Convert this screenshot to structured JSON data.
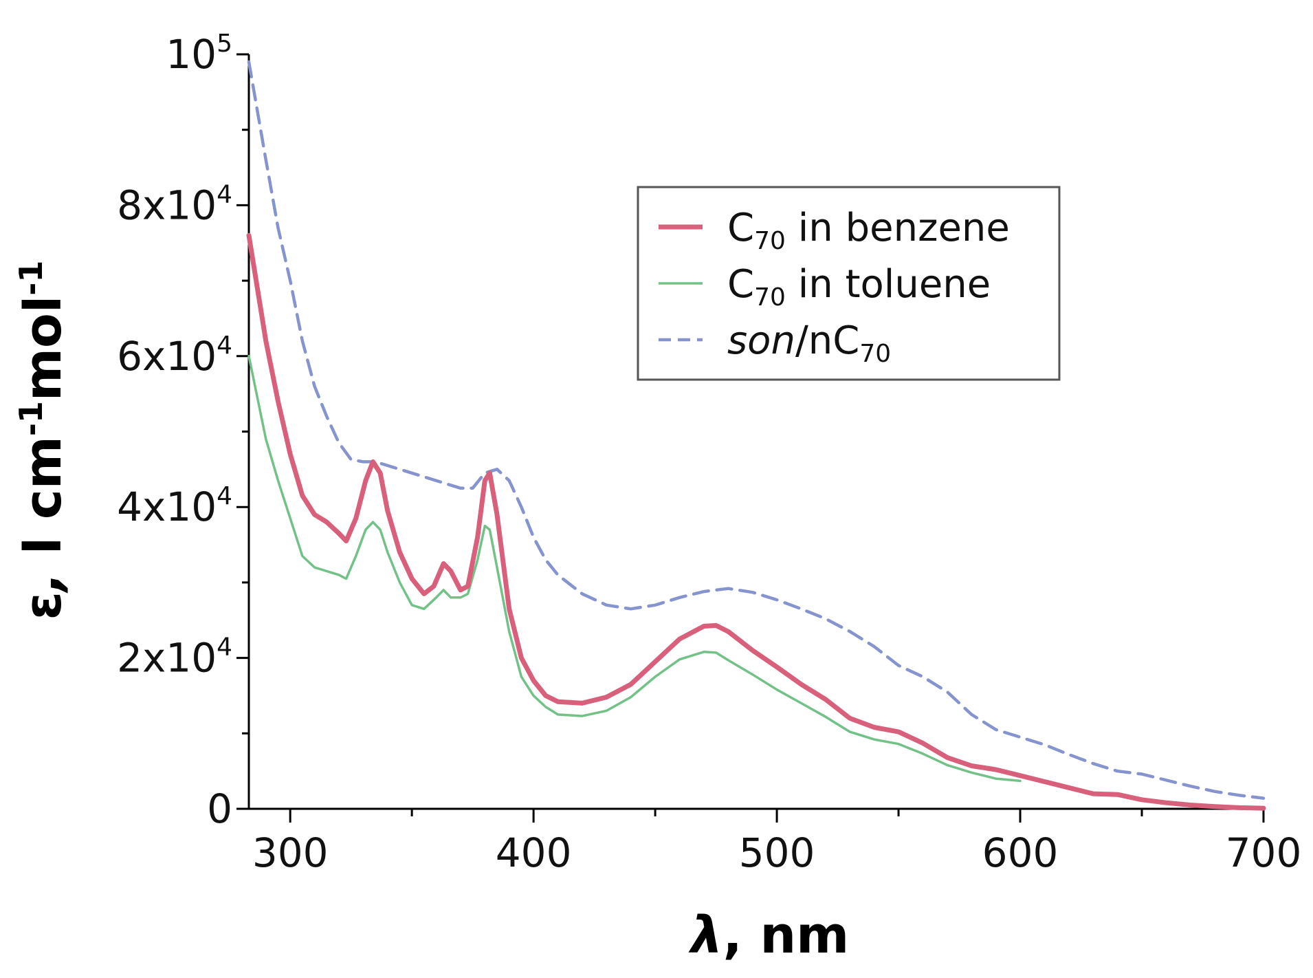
{
  "chart_data": {
    "type": "line",
    "xlabel": {
      "symbol": "λ",
      "unit": ", nm"
    },
    "ylabel": {
      "symbol": "ε",
      "sep": ", ",
      "l": "l cm",
      "e1": "-1",
      "mol": "mol",
      "e2": "-1"
    },
    "xlim": [
      283,
      700
    ],
    "ylim": [
      0,
      100000
    ],
    "grid": false,
    "legend_position": "top-right",
    "x_ticks": [
      {
        "value": 300,
        "label": "300"
      },
      {
        "value": 400,
        "label": "400"
      },
      {
        "value": 500,
        "label": "500"
      },
      {
        "value": 600,
        "label": "600"
      },
      {
        "value": 700,
        "label": "700"
      }
    ],
    "x_minor_ticks": [
      350,
      450,
      550,
      650
    ],
    "y_ticks": [
      {
        "value": 0,
        "base": "0",
        "exp": ""
      },
      {
        "value": 20000,
        "base": "2x10",
        "exp": "4"
      },
      {
        "value": 40000,
        "base": "4x10",
        "exp": "4"
      },
      {
        "value": 60000,
        "base": "6x10",
        "exp": "4"
      },
      {
        "value": 80000,
        "base": "8x10",
        "exp": "4"
      },
      {
        "value": 100000,
        "base": "10",
        "exp": "5"
      }
    ],
    "y_minor_ticks": [
      10000,
      30000,
      50000,
      70000,
      90000
    ],
    "series": [
      {
        "name": {
          "main": "C",
          "sub": "70",
          "rest": " in benzene"
        },
        "color": "#d9607a",
        "style": "solid",
        "width": "thick",
        "points": [
          [
            283,
            76000
          ],
          [
            290,
            62000
          ],
          [
            295,
            54000
          ],
          [
            300,
            47000
          ],
          [
            305,
            41500
          ],
          [
            310,
            39000
          ],
          [
            315,
            38000
          ],
          [
            320,
            36500
          ],
          [
            323,
            35500
          ],
          [
            327,
            38500
          ],
          [
            331,
            43500
          ],
          [
            334,
            46000
          ],
          [
            337,
            44500
          ],
          [
            340,
            39500
          ],
          [
            345,
            34000
          ],
          [
            350,
            30500
          ],
          [
            355,
            28500
          ],
          [
            359,
            29500
          ],
          [
            363,
            32500
          ],
          [
            366,
            31500
          ],
          [
            370,
            29000
          ],
          [
            373,
            29500
          ],
          [
            377,
            36000
          ],
          [
            380,
            43500
          ],
          [
            382,
            44500
          ],
          [
            385,
            39000
          ],
          [
            390,
            26500
          ],
          [
            395,
            20000
          ],
          [
            400,
            17000
          ],
          [
            405,
            15000
          ],
          [
            410,
            14200
          ],
          [
            420,
            14000
          ],
          [
            430,
            14800
          ],
          [
            440,
            16500
          ],
          [
            450,
            19500
          ],
          [
            460,
            22500
          ],
          [
            470,
            24200
          ],
          [
            475,
            24300
          ],
          [
            480,
            23500
          ],
          [
            490,
            21000
          ],
          [
            500,
            18800
          ],
          [
            510,
            16500
          ],
          [
            520,
            14500
          ],
          [
            530,
            12000
          ],
          [
            540,
            10800
          ],
          [
            550,
            10200
          ],
          [
            560,
            8700
          ],
          [
            570,
            6800
          ],
          [
            580,
            5700
          ],
          [
            590,
            5200
          ],
          [
            600,
            4400
          ],
          [
            610,
            3600
          ],
          [
            620,
            2800
          ],
          [
            630,
            2000
          ],
          [
            640,
            1900
          ],
          [
            650,
            1200
          ],
          [
            660,
            800
          ],
          [
            670,
            500
          ],
          [
            680,
            300
          ],
          [
            690,
            150
          ],
          [
            700,
            80
          ]
        ]
      },
      {
        "name": {
          "main": "C",
          "sub": "70",
          "rest": " in toluene"
        },
        "color": "#72c187",
        "style": "solid",
        "width": "thin",
        "points": [
          [
            283,
            60000
          ],
          [
            290,
            49000
          ],
          [
            295,
            43500
          ],
          [
            300,
            38500
          ],
          [
            305,
            33500
          ],
          [
            310,
            32000
          ],
          [
            315,
            31500
          ],
          [
            320,
            31000
          ],
          [
            323,
            30500
          ],
          [
            327,
            33500
          ],
          [
            331,
            37000
          ],
          [
            334,
            38000
          ],
          [
            337,
            37000
          ],
          [
            340,
            34000
          ],
          [
            345,
            30000
          ],
          [
            350,
            27000
          ],
          [
            355,
            26500
          ],
          [
            360,
            28000
          ],
          [
            363,
            29000
          ],
          [
            366,
            28000
          ],
          [
            370,
            28000
          ],
          [
            373,
            28500
          ],
          [
            377,
            33000
          ],
          [
            380,
            37500
          ],
          [
            382,
            37000
          ],
          [
            385,
            32000
          ],
          [
            390,
            23500
          ],
          [
            395,
            17500
          ],
          [
            400,
            15000
          ],
          [
            405,
            13500
          ],
          [
            410,
            12500
          ],
          [
            420,
            12300
          ],
          [
            430,
            13000
          ],
          [
            440,
            14800
          ],
          [
            450,
            17500
          ],
          [
            460,
            19800
          ],
          [
            470,
            20800
          ],
          [
            475,
            20700
          ],
          [
            480,
            19700
          ],
          [
            490,
            17800
          ],
          [
            500,
            15800
          ],
          [
            510,
            14000
          ],
          [
            520,
            12200
          ],
          [
            530,
            10200
          ],
          [
            540,
            9200
          ],
          [
            550,
            8600
          ],
          [
            560,
            7300
          ],
          [
            570,
            5800
          ],
          [
            580,
            4800
          ],
          [
            590,
            4000
          ],
          [
            600,
            3700
          ]
        ]
      },
      {
        "name": {
          "italic": "son",
          "main": "/nC",
          "sub": "70",
          "rest": ""
        },
        "color": "#8594cf",
        "style": "dashed",
        "width": "medium",
        "points": [
          [
            283,
            99000
          ],
          [
            290,
            86000
          ],
          [
            295,
            77000
          ],
          [
            300,
            70000
          ],
          [
            305,
            62000
          ],
          [
            310,
            56000
          ],
          [
            315,
            52000
          ],
          [
            320,
            48500
          ],
          [
            325,
            46300
          ],
          [
            330,
            46000
          ],
          [
            335,
            46000
          ],
          [
            340,
            45500
          ],
          [
            350,
            44500
          ],
          [
            360,
            43500
          ],
          [
            370,
            42500
          ],
          [
            375,
            42500
          ],
          [
            380,
            44500
          ],
          [
            385,
            45000
          ],
          [
            390,
            43500
          ],
          [
            395,
            40000
          ],
          [
            400,
            36000
          ],
          [
            405,
            33000
          ],
          [
            410,
            31000
          ],
          [
            420,
            28500
          ],
          [
            430,
            27000
          ],
          [
            440,
            26500
          ],
          [
            450,
            27000
          ],
          [
            460,
            28000
          ],
          [
            470,
            28800
          ],
          [
            480,
            29200
          ],
          [
            490,
            28700
          ],
          [
            500,
            27700
          ],
          [
            510,
            26500
          ],
          [
            520,
            25200
          ],
          [
            530,
            23500
          ],
          [
            540,
            21500
          ],
          [
            550,
            19000
          ],
          [
            560,
            17500
          ],
          [
            570,
            15500
          ],
          [
            580,
            12500
          ],
          [
            590,
            10500
          ],
          [
            600,
            9500
          ],
          [
            610,
            8500
          ],
          [
            620,
            7200
          ],
          [
            630,
            6000
          ],
          [
            640,
            5000
          ],
          [
            650,
            4600
          ],
          [
            660,
            3800
          ],
          [
            670,
            3000
          ],
          [
            680,
            2300
          ],
          [
            690,
            1800
          ],
          [
            700,
            1400
          ]
        ]
      }
    ]
  }
}
